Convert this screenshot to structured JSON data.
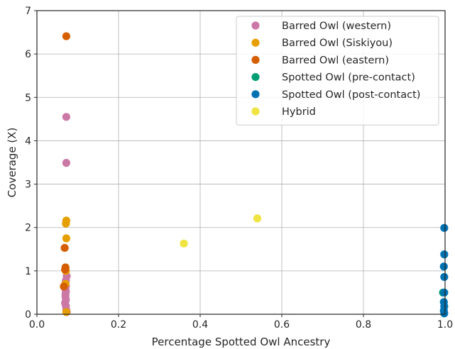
{
  "chart_data": {
    "type": "scatter",
    "xlabel": "Percentage Spotted Owl Ancestry",
    "ylabel": "Coverage (X)",
    "xlim": [
      0.0,
      1.0
    ],
    "ylim": [
      0,
      7
    ],
    "x_ticks": [
      "0.0",
      "0.2",
      "0.4",
      "0.6",
      "0.8",
      "1.0"
    ],
    "y_ticks": [
      "0",
      "1",
      "2",
      "3",
      "4",
      "5",
      "6",
      "7"
    ],
    "grid": true,
    "legend_position": "top-right",
    "series": [
      {
        "name": "Barred Owl (western)",
        "color": "#cc78a7",
        "points": [
          {
            "x": 0.072,
            "y": 4.55
          },
          {
            "x": 0.072,
            "y": 3.49
          },
          {
            "x": 0.073,
            "y": 0.88
          },
          {
            "x": 0.071,
            "y": 0.78
          },
          {
            "x": 0.07,
            "y": 0.72
          },
          {
            "x": 0.071,
            "y": 0.65
          },
          {
            "x": 0.07,
            "y": 0.58
          },
          {
            "x": 0.071,
            "y": 0.52
          },
          {
            "x": 0.07,
            "y": 0.46
          },
          {
            "x": 0.07,
            "y": 0.4
          },
          {
            "x": 0.071,
            "y": 0.33
          },
          {
            "x": 0.069,
            "y": 0.26
          },
          {
            "x": 0.071,
            "y": 0.19
          },
          {
            "x": 0.072,
            "y": 0.1
          },
          {
            "x": 0.073,
            "y": 0.05
          }
        ]
      },
      {
        "name": "Barred Owl (Siskiyou)",
        "color": "#e69f00",
        "points": [
          {
            "x": 0.072,
            "y": 2.16
          },
          {
            "x": 0.071,
            "y": 2.09
          },
          {
            "x": 0.072,
            "y": 1.75
          },
          {
            "x": 0.071,
            "y": 1.0
          },
          {
            "x": 0.07,
            "y": 0.7
          },
          {
            "x": 0.072,
            "y": 0.05
          }
        ]
      },
      {
        "name": "Barred Owl (eastern)",
        "color": "#d55e00",
        "points": [
          {
            "x": 0.072,
            "y": 6.41
          },
          {
            "x": 0.068,
            "y": 1.53
          },
          {
            "x": 0.07,
            "y": 1.08
          },
          {
            "x": 0.069,
            "y": 1.03
          },
          {
            "x": 0.066,
            "y": 0.64
          }
        ]
      },
      {
        "name": "Spotted Owl (pre-contact)",
        "color": "#009e73",
        "points": [
          {
            "x": 0.995,
            "y": 0.5
          }
        ]
      },
      {
        "name": "Spotted Owl (post-contact)",
        "color": "#0072b2",
        "points": [
          {
            "x": 0.998,
            "y": 1.99
          },
          {
            "x": 0.998,
            "y": 1.38
          },
          {
            "x": 0.997,
            "y": 1.1
          },
          {
            "x": 0.998,
            "y": 0.86
          },
          {
            "x": 0.998,
            "y": 0.5
          },
          {
            "x": 0.997,
            "y": 0.28
          },
          {
            "x": 0.998,
            "y": 0.18
          },
          {
            "x": 0.997,
            "y": 0.08
          },
          {
            "x": 0.998,
            "y": 0.02
          }
        ]
      },
      {
        "name": "Hybrid",
        "color": "#f0e442",
        "points": [
          {
            "x": 0.36,
            "y": 1.63
          },
          {
            "x": 0.54,
            "y": 2.21
          }
        ]
      }
    ]
  }
}
